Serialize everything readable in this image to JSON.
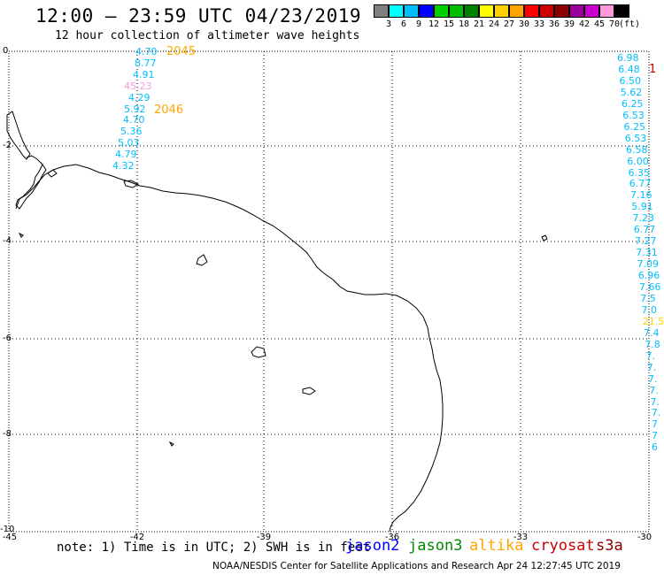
{
  "title": "12:00 – 23:59 UTC 04/23/2019",
  "subtitle": "12 hour collection of altimeter wave heights",
  "legend": {
    "colors": [
      "#808080",
      "#00ffff",
      "#00bfff",
      "#0000ff",
      "#00d000",
      "#00bf00",
      "#008000",
      "#ffff00",
      "#ffd000",
      "#ffa500",
      "#ff0000",
      "#cc0000",
      "#8b0000",
      "#990099",
      "#cc00cc",
      "#ff99dd",
      "#000000"
    ],
    "labels": [
      "3",
      "6",
      "9",
      "12",
      "15",
      "18",
      "21",
      "24",
      "27",
      "30",
      "33",
      "36",
      "39",
      "42",
      "45",
      "70",
      "(ft)"
    ]
  },
  "axes": {
    "x_ticks": [
      "-45",
      "-42",
      "-39",
      "-36",
      "-33",
      "-30"
    ],
    "y_ticks": [
      "0",
      "-2",
      "-4",
      "-6",
      "-8",
      "-10"
    ]
  },
  "note": "note: 1) Time is in UTC; 2) SWH is in feet",
  "satellites": [
    {
      "name": "jason2",
      "color": "#0000ff"
    },
    {
      "name": "jason3",
      "color": "#008800"
    },
    {
      "name": "altika",
      "color": "#ffa500"
    },
    {
      "name": "cryosat",
      "color": "#cc0000"
    },
    {
      "name": "s3a",
      "color": "#8b0000"
    }
  ],
  "footer": "NOAA/NESDIS Center for Satellite Applications and Research   Apr 24 12:27:45 UTC 2019",
  "track_left": {
    "values": [
      "4.70",
      "8.77",
      "4.91",
      "45.23",
      "4.29",
      "5.92",
      "4.70",
      "5.36",
      "5.03",
      "4.79",
      "4.32"
    ],
    "colors": [
      "#00bfff",
      "#00bfff",
      "#00bfff",
      "#ff99dd",
      "#00bfff",
      "#00bfff",
      "#00bfff",
      "#00bfff",
      "#00bfff",
      "#00bfff",
      "#00bfff"
    ],
    "times": [
      "2045",
      "2046"
    ]
  },
  "track_right": {
    "values": [
      "6.98",
      "6.48",
      "6.50",
      "5.62",
      "6.25",
      "6.53",
      "6.25",
      "6.53",
      "6.58",
      "6.00",
      "6.35",
      "6.77",
      "7.16",
      "5.91",
      "7.23",
      "6.77",
      "7.27",
      "7.31",
      "7.09",
      "6.96",
      "7.66",
      "7.5",
      "7.0",
      "21.5",
      "7.4",
      "7.8",
      "7.",
      "7.",
      "7.",
      "7.",
      "7.",
      "7.",
      "7",
      "7",
      "6"
    ],
    "colors": [
      "#00bfff",
      "#00bfff",
      "#00bfff",
      "#00bfff",
      "#00bfff",
      "#00bfff",
      "#00bfff",
      "#00bfff",
      "#00bfff",
      "#00bfff",
      "#00bfff",
      "#00bfff",
      "#00bfff",
      "#00bfff",
      "#00bfff",
      "#00bfff",
      "#00bfff",
      "#00bfff",
      "#00bfff",
      "#00bfff",
      "#00bfff",
      "#00bfff",
      "#00bfff",
      "#ffd000",
      "#00bfff",
      "#00bfff",
      "#00bfff",
      "#00bfff",
      "#00bfff",
      "#00bfff",
      "#00bfff",
      "#00bfff",
      "#00bfff",
      "#00bfff",
      "#00bfff"
    ],
    "edge_mark": "1"
  }
}
